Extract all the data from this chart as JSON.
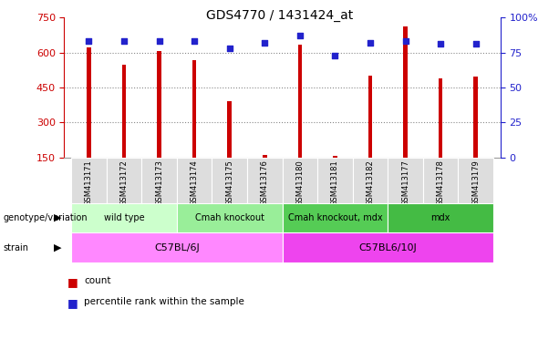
{
  "title": "GDS4770 / 1431424_at",
  "samples": [
    "GSM413171",
    "GSM413172",
    "GSM413173",
    "GSM413174",
    "GSM413175",
    "GSM413176",
    "GSM413180",
    "GSM413181",
    "GSM413182",
    "GSM413177",
    "GSM413178",
    "GSM413179"
  ],
  "counts": [
    620,
    547,
    607,
    567,
    390,
    162,
    635,
    158,
    500,
    712,
    488,
    495
  ],
  "percentiles": [
    83,
    83,
    83,
    83,
    78,
    82,
    87,
    73,
    82,
    83,
    81,
    81
  ],
  "ylim_left": [
    150,
    750
  ],
  "ylim_right": [
    0,
    100
  ],
  "yticks_left": [
    150,
    300,
    450,
    600,
    750
  ],
  "yticks_right": [
    0,
    25,
    50,
    75,
    100
  ],
  "ytick_right_labels": [
    "0",
    "25",
    "50",
    "75",
    "100%"
  ],
  "bar_color": "#cc0000",
  "dot_color": "#2222cc",
  "bar_width": 0.12,
  "genotype_groups": [
    {
      "label": "wild type",
      "start": 0,
      "end": 2,
      "color": "#ccffcc"
    },
    {
      "label": "Cmah knockout",
      "start": 3,
      "end": 5,
      "color": "#99ee99"
    },
    {
      "label": "Cmah knockout, mdx",
      "start": 6,
      "end": 8,
      "color": "#55cc55"
    },
    {
      "label": "mdx",
      "start": 9,
      "end": 11,
      "color": "#44bb44"
    }
  ],
  "strain_groups": [
    {
      "label": "C57BL/6J",
      "start": 0,
      "end": 5,
      "color": "#ff88ff"
    },
    {
      "label": "C57BL6/10J",
      "start": 6,
      "end": 11,
      "color": "#ee44ee"
    }
  ],
  "left_axis_color": "#cc0000",
  "right_axis_color": "#2222cc",
  "background_color": "#ffffff",
  "grid_color": "#888888",
  "tick_bg_color": "#dddddd"
}
